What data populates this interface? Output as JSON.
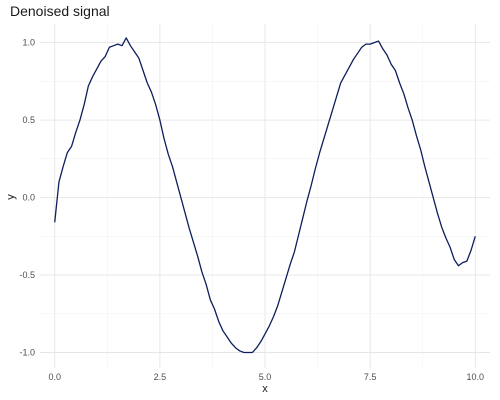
{
  "chart_data": {
    "type": "line",
    "title": "Denoised signal",
    "xlabel": "x",
    "ylabel": "y",
    "xlim": [
      -0.35,
      10.35
    ],
    "ylim": [
      -1.1,
      1.12
    ],
    "x_ticks": [
      0.0,
      2.5,
      5.0,
      7.5,
      10.0
    ],
    "x_tick_labels": [
      "0.0",
      "2.5",
      "5.0",
      "7.5",
      "10.0"
    ],
    "y_ticks": [
      -1.0,
      -0.5,
      0.0,
      0.5,
      1.0
    ],
    "y_tick_labels": [
      "-1.0",
      "-0.5",
      "0.0",
      "0.5",
      "1.0"
    ],
    "grid": true,
    "line_color": "#0d1f5c",
    "series": [
      {
        "x": [
          0.0,
          0.1,
          0.2,
          0.3,
          0.4,
          0.5,
          0.6,
          0.7,
          0.8,
          0.9,
          1.0,
          1.1,
          1.2,
          1.3,
          1.4,
          1.5,
          1.6,
          1.7,
          1.8,
          1.9,
          2.0,
          2.1,
          2.2,
          2.3,
          2.4,
          2.5,
          2.6,
          2.7,
          2.8,
          2.9,
          3.0,
          3.1,
          3.2,
          3.3,
          3.4,
          3.5,
          3.6,
          3.7,
          3.8,
          3.9,
          4.0,
          4.1,
          4.2,
          4.3,
          4.4,
          4.5,
          4.6,
          4.7,
          4.8,
          4.9,
          5.0,
          5.1,
          5.2,
          5.3,
          5.4,
          5.5,
          5.6,
          5.7,
          5.8,
          5.9,
          6.0,
          6.1,
          6.2,
          6.3,
          6.4,
          6.5,
          6.6,
          6.7,
          6.8,
          6.9,
          7.0,
          7.1,
          7.2,
          7.3,
          7.4,
          7.5,
          7.6,
          7.7,
          7.8,
          7.9,
          8.0,
          8.1,
          8.2,
          8.3,
          8.4,
          8.5,
          8.6,
          8.7,
          8.8,
          8.9,
          9.0,
          9.1,
          9.2,
          9.3,
          9.4,
          9.5,
          9.6,
          9.7,
          9.8,
          9.9,
          10.0
        ],
        "y": [
          -0.16,
          0.1,
          0.2,
          0.29,
          0.33,
          0.42,
          0.5,
          0.6,
          0.72,
          0.78,
          0.83,
          0.88,
          0.91,
          0.97,
          0.98,
          0.99,
          0.98,
          1.03,
          0.98,
          0.94,
          0.9,
          0.82,
          0.74,
          0.68,
          0.6,
          0.5,
          0.38,
          0.28,
          0.2,
          0.1,
          0.0,
          -0.1,
          -0.2,
          -0.29,
          -0.38,
          -0.48,
          -0.56,
          -0.66,
          -0.72,
          -0.8,
          -0.86,
          -0.9,
          -0.94,
          -0.97,
          -0.99,
          -1.0,
          -1.0,
          -1.0,
          -0.97,
          -0.93,
          -0.88,
          -0.83,
          -0.77,
          -0.7,
          -0.61,
          -0.52,
          -0.43,
          -0.35,
          -0.24,
          -0.13,
          -0.02,
          0.08,
          0.19,
          0.29,
          0.38,
          0.47,
          0.56,
          0.65,
          0.74,
          0.79,
          0.84,
          0.89,
          0.93,
          0.97,
          0.99,
          0.99,
          1.0,
          1.01,
          0.96,
          0.92,
          0.86,
          0.82,
          0.74,
          0.67,
          0.58,
          0.5,
          0.4,
          0.31,
          0.2,
          0.1,
          0.0,
          -0.1,
          -0.19,
          -0.26,
          -0.32,
          -0.4,
          -0.44,
          -0.42,
          -0.41,
          -0.34,
          -0.25
        ]
      }
    ]
  }
}
